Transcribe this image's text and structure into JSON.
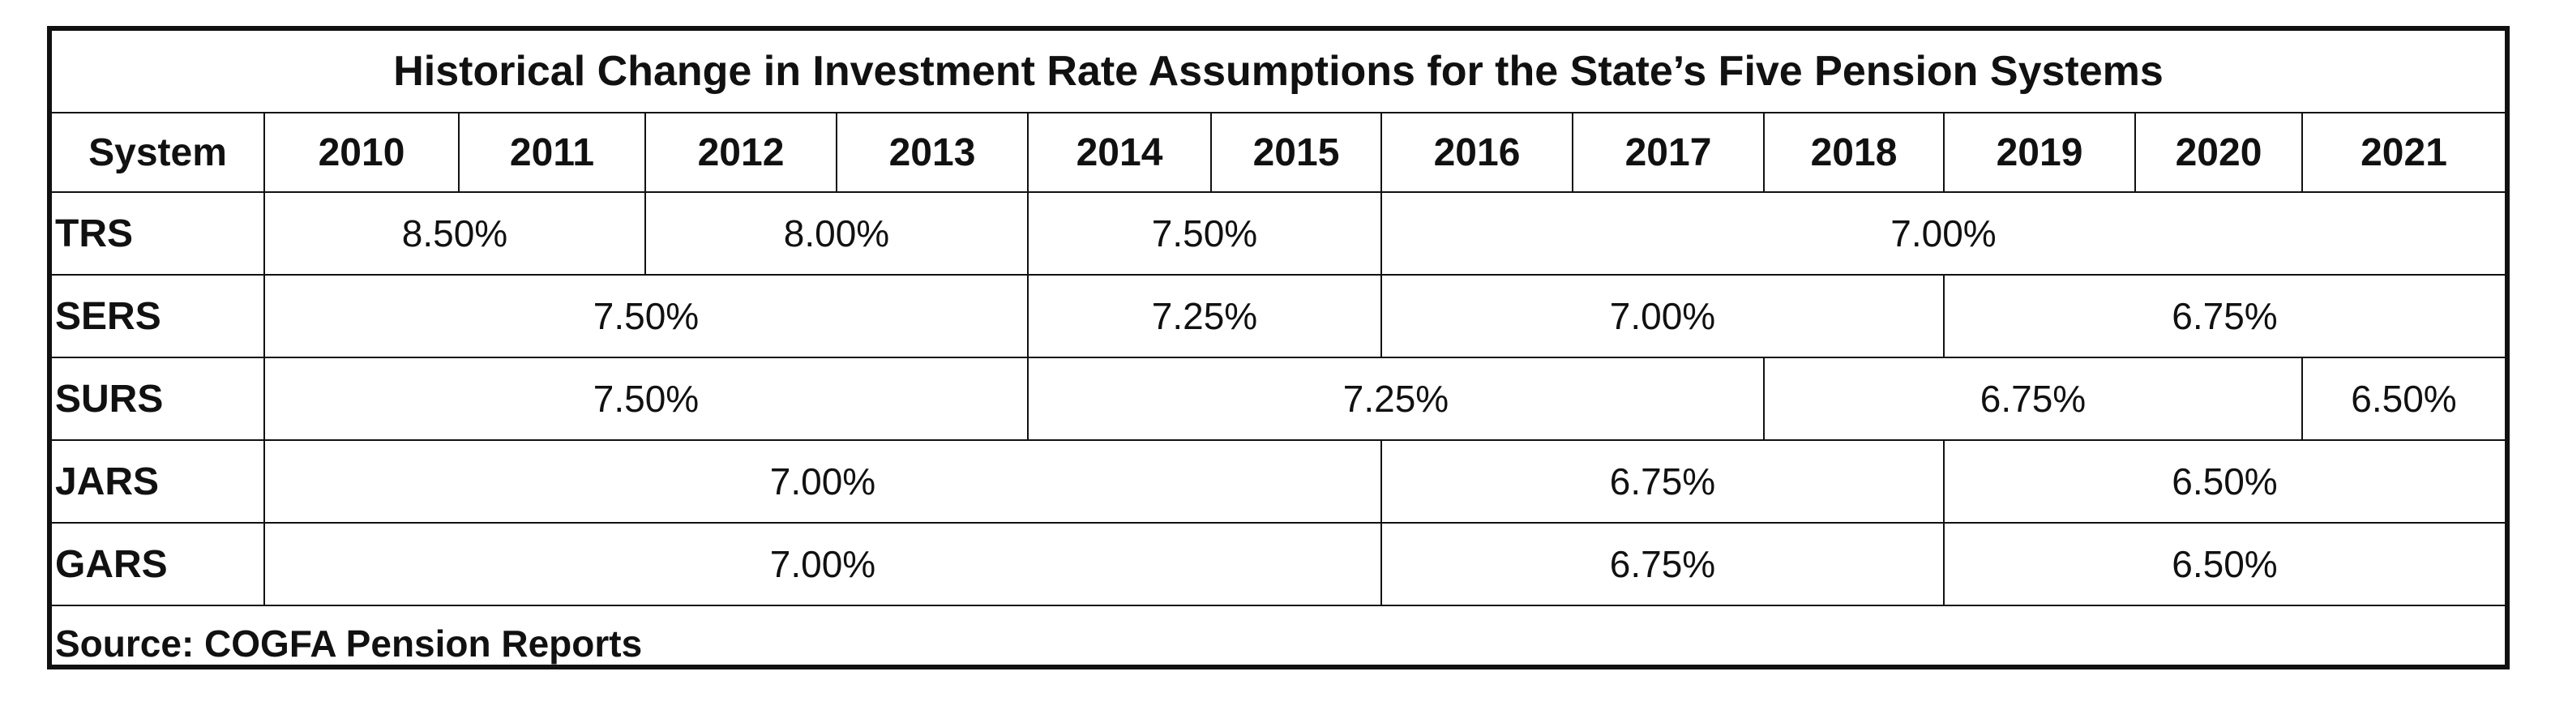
{
  "title": "Historical Change in Investment Rate Assumptions for the State’s Five Pension Systems",
  "header": {
    "system_label": "System",
    "years": [
      "2010",
      "2011",
      "2012",
      "2013",
      "2014",
      "2015",
      "2016",
      "2017",
      "2018",
      "2019",
      "2020",
      "2021"
    ]
  },
  "rows": [
    {
      "system": "TRS",
      "segments": [
        {
          "label": "8.50%",
          "from": "2010",
          "to": "2011"
        },
        {
          "label": "8.00%",
          "from": "2012",
          "to": "2013"
        },
        {
          "label": "7.50%",
          "from": "2014",
          "to": "2015"
        },
        {
          "label": "7.00%",
          "from": "2016",
          "to": "2021"
        }
      ]
    },
    {
      "system": "SERS",
      "segments": [
        {
          "label": "7.50%",
          "from": "2010",
          "to": "2013"
        },
        {
          "label": "7.25%",
          "from": "2014",
          "to": "2015"
        },
        {
          "label": "7.00%",
          "from": "2016",
          "to": "2018"
        },
        {
          "label": "6.75%",
          "from": "2019",
          "to": "2021"
        }
      ]
    },
    {
      "system": "SURS",
      "segments": [
        {
          "label": "7.50%",
          "from": "2010",
          "to": "2013"
        },
        {
          "label": "7.25%",
          "from": "2014",
          "to": "2017"
        },
        {
          "label": "6.75%",
          "from": "2018",
          "to": "2020"
        },
        {
          "label": "6.50%",
          "from": "2021",
          "to": "2021"
        }
      ]
    },
    {
      "system": "JARS",
      "segments": [
        {
          "label": "7.00%",
          "from": "2010",
          "to": "2015"
        },
        {
          "label": "6.75%",
          "from": "2016",
          "to": "2018"
        },
        {
          "label": "6.50%",
          "from": "2019",
          "to": "2021"
        }
      ]
    },
    {
      "system": "GARS",
      "segments": [
        {
          "label": "7.00%",
          "from": "2010",
          "to": "2015"
        },
        {
          "label": "6.75%",
          "from": "2016",
          "to": "2018"
        },
        {
          "label": "6.50%",
          "from": "2019",
          "to": "2021"
        }
      ]
    }
  ],
  "source": "Source: COGFA Pension Reports"
}
